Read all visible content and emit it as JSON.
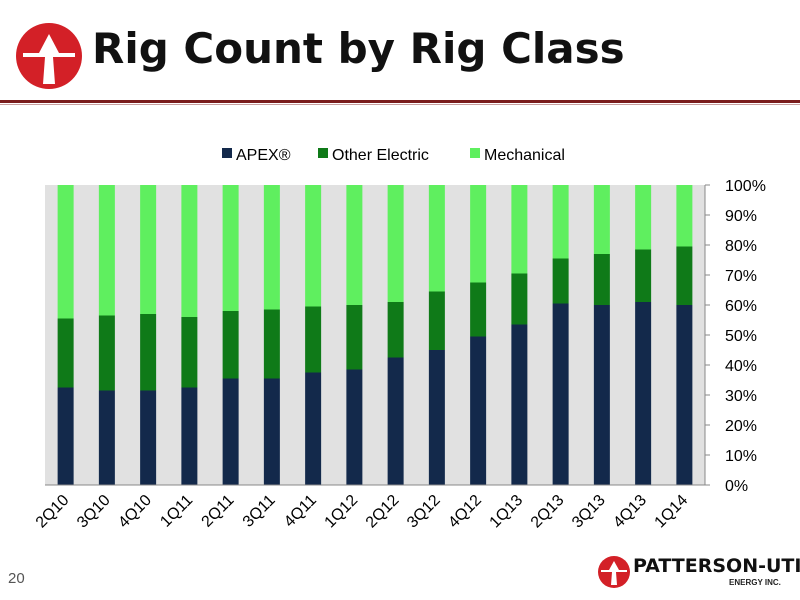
{
  "slide": {
    "title": "Rig Count by Rig Class",
    "page_number": "20",
    "logo": {
      "name": "PATTERSON-UTI",
      "sub": "ENERGY INC."
    }
  },
  "colors": {
    "apex": "#13294b",
    "other_electric": "#0f7a18",
    "mechanical": "#5fef5f",
    "plot_background": "#e1e1e1",
    "brand_red": "#d32027",
    "rule": "#7a1c1c"
  },
  "chart_data": {
    "type": "bar",
    "stacked": true,
    "categories": [
      "2Q10",
      "3Q10",
      "4Q10",
      "1Q11",
      "2Q11",
      "3Q11",
      "4Q11",
      "1Q12",
      "2Q12",
      "3Q12",
      "4Q12",
      "1Q13",
      "2Q13",
      "3Q13",
      "4Q13",
      "1Q14"
    ],
    "series": [
      {
        "name": "APEX®",
        "color": "#13294b",
        "values": [
          32.5,
          31.5,
          31.5,
          32.5,
          35.5,
          35.5,
          37.5,
          38.5,
          42.5,
          45,
          49.5,
          53.5,
          60.5,
          60,
          61,
          60
        ]
      },
      {
        "name": "Other Electric",
        "color": "#0f7a18",
        "values": [
          23,
          25,
          25.5,
          23.5,
          22.5,
          23,
          22,
          21.5,
          18.5,
          19.5,
          18,
          17,
          15,
          17,
          17.5,
          19.5
        ]
      },
      {
        "name": "Mechanical",
        "color": "#5fef5f",
        "values": [
          44.5,
          43.5,
          43,
          44,
          42,
          41.5,
          40.5,
          40,
          39,
          35.5,
          32.5,
          29.5,
          24.5,
          23,
          21.5,
          20.5
        ]
      }
    ],
    "ylim": [
      0,
      100
    ],
    "y_ticks": [
      "0%",
      "10%",
      "20%",
      "30%",
      "40%",
      "50%",
      "60%",
      "70%",
      "80%",
      "90%",
      "100%"
    ],
    "y_axis_side": "right",
    "legend_position": "top",
    "grid": false
  }
}
